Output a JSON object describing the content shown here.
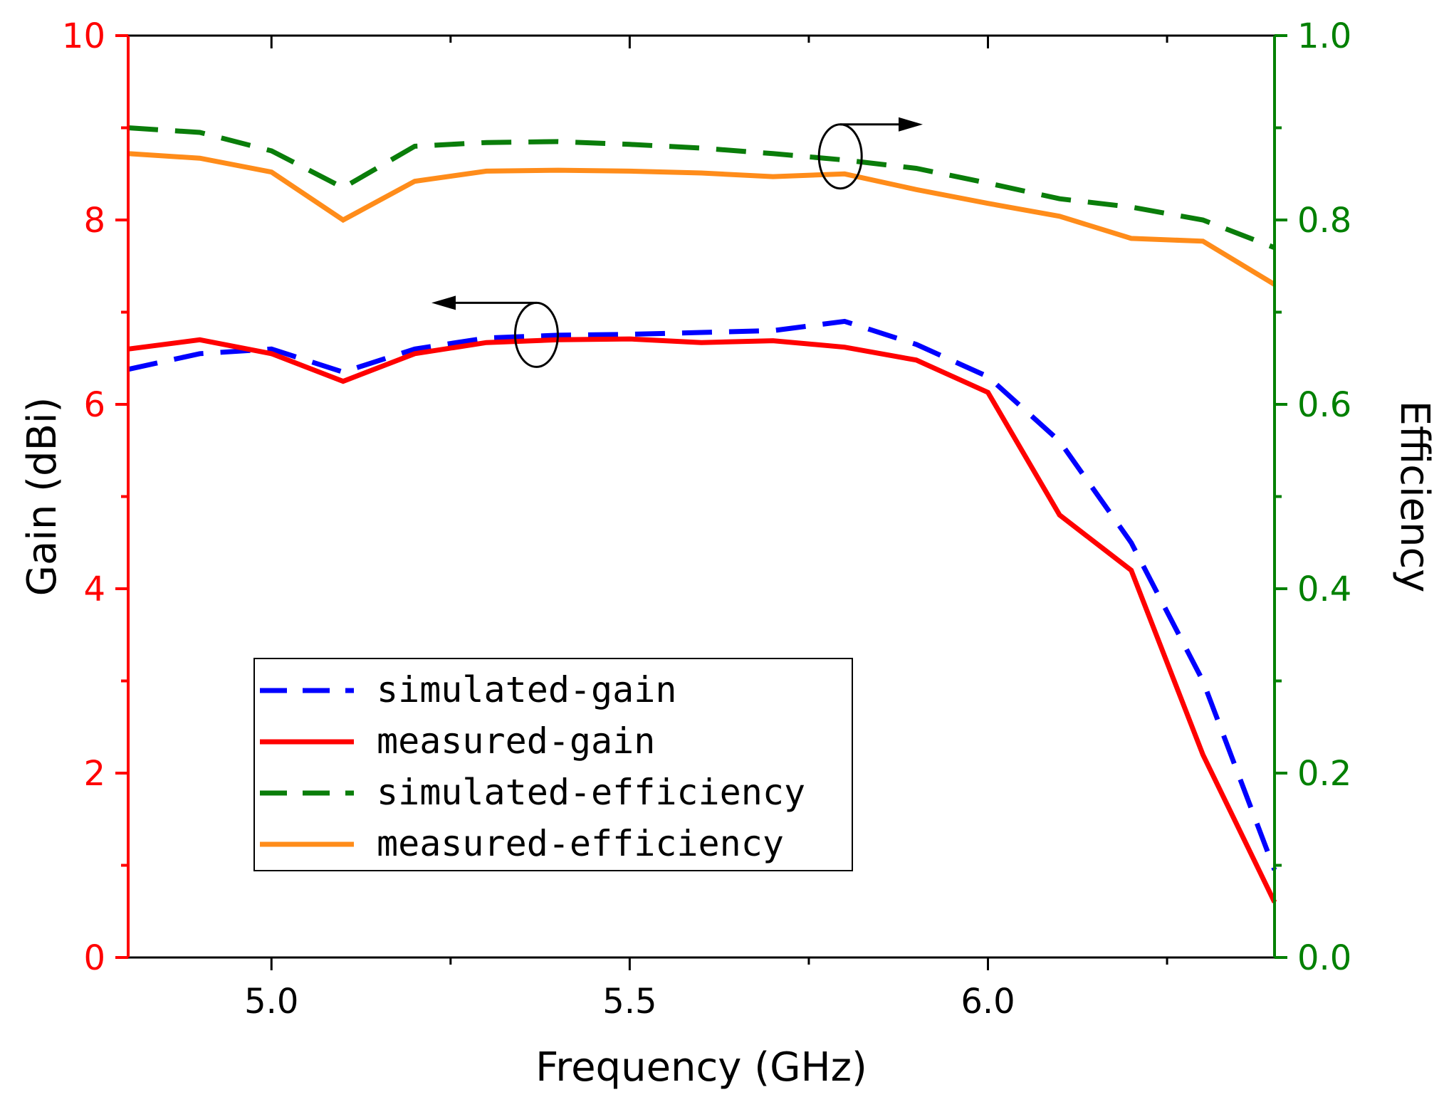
{
  "chart_data": {
    "type": "line",
    "title": "",
    "xlabel": "Frequency (GHz)",
    "ylabel_left": "Gain (dBi)",
    "ylabel_right": "Efficiency",
    "xlim": [
      4.8,
      6.4
    ],
    "ylim_left": [
      0,
      10
    ],
    "ylim_right": [
      0.0,
      1.0
    ],
    "x_ticks": [
      5.0,
      5.5,
      6.0
    ],
    "x_tick_labels": [
      "5.0",
      "5.5",
      "6.0"
    ],
    "left_ticks": [
      0,
      2,
      4,
      6,
      8,
      10
    ],
    "left_tick_labels": [
      "0",
      "2",
      "4",
      "6",
      "8",
      "10"
    ],
    "right_ticks": [
      0.0,
      0.2,
      0.4,
      0.6,
      0.8,
      1.0
    ],
    "right_tick_labels": [
      "0.0",
      "0.2",
      "0.4",
      "0.6",
      "0.8",
      "1.0"
    ],
    "grid": false,
    "legend_position": "lower-left",
    "colors": {
      "left_axis": "#ff0000",
      "right_axis": "#008000",
      "simulated_gain": "#0000ff",
      "measured_gain": "#ff0000",
      "simulated_efficiency": "#0a7d0a",
      "measured_efficiency": "#ff8c1a"
    },
    "series": [
      {
        "name": "simulated-gain",
        "axis": "left",
        "style": "dashed",
        "color": "#0000ff",
        "x": [
          4.8,
          4.9,
          5.0,
          5.1,
          5.2,
          5.3,
          5.4,
          5.5,
          5.6,
          5.7,
          5.8,
          5.9,
          6.0,
          6.1,
          6.2,
          6.3,
          6.4
        ],
        "values": [
          6.38,
          6.55,
          6.6,
          6.35,
          6.6,
          6.72,
          6.75,
          6.76,
          6.78,
          6.8,
          6.9,
          6.65,
          6.3,
          5.6,
          4.5,
          3.0,
          0.95
        ]
      },
      {
        "name": "measured-gain",
        "axis": "left",
        "style": "solid",
        "color": "#ff0000",
        "x": [
          4.8,
          4.9,
          5.0,
          5.1,
          5.2,
          5.3,
          5.4,
          5.5,
          5.6,
          5.7,
          5.8,
          5.9,
          6.0,
          6.1,
          6.2,
          6.3,
          6.4
        ],
        "values": [
          6.6,
          6.7,
          6.55,
          6.25,
          6.55,
          6.67,
          6.7,
          6.71,
          6.67,
          6.69,
          6.62,
          6.48,
          6.13,
          4.8,
          4.2,
          2.2,
          0.6
        ]
      },
      {
        "name": "simulated-efficiency",
        "axis": "right",
        "style": "dashed",
        "color": "#0a7d0a",
        "x": [
          4.8,
          4.9,
          5.0,
          5.1,
          5.2,
          5.3,
          5.4,
          5.5,
          5.6,
          5.7,
          5.8,
          5.9,
          6.0,
          6.1,
          6.2,
          6.3,
          6.4
        ],
        "values": [
          0.9,
          0.895,
          0.875,
          0.835,
          0.88,
          0.884,
          0.885,
          0.882,
          0.878,
          0.872,
          0.865,
          0.856,
          0.84,
          0.823,
          0.814,
          0.8,
          0.77
        ]
      },
      {
        "name": "measured-efficiency",
        "axis": "right",
        "style": "solid",
        "color": "#ff8c1a",
        "x": [
          4.8,
          4.9,
          5.0,
          5.1,
          5.2,
          5.3,
          5.4,
          5.5,
          5.6,
          5.7,
          5.8,
          5.9,
          6.0,
          6.1,
          6.2,
          6.3,
          6.4
        ],
        "values": [
          0.872,
          0.867,
          0.852,
          0.8,
          0.842,
          0.853,
          0.854,
          0.853,
          0.851,
          0.847,
          0.85,
          0.833,
          0.818,
          0.804,
          0.78,
          0.777,
          0.73
        ]
      }
    ],
    "annotations": [
      {
        "type": "ellipse-arrow",
        "target_axis": "left",
        "direction": "left",
        "anchor": [
          5.35,
          6.8
        ]
      },
      {
        "type": "ellipse-arrow",
        "target_axis": "right",
        "direction": "right",
        "anchor": [
          5.79,
          8.72
        ]
      }
    ]
  }
}
